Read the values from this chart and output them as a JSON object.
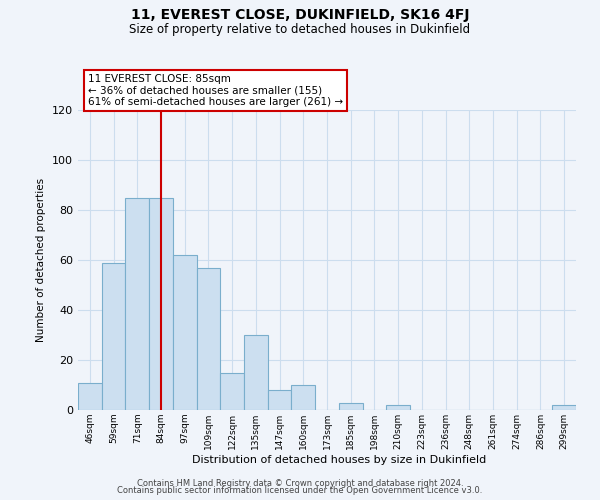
{
  "title": "11, EVEREST CLOSE, DUKINFIELD, SK16 4FJ",
  "subtitle": "Size of property relative to detached houses in Dukinfield",
  "xlabel": "Distribution of detached houses by size in Dukinfield",
  "ylabel": "Number of detached properties",
  "bar_labels": [
    "46sqm",
    "59sqm",
    "71sqm",
    "84sqm",
    "97sqm",
    "109sqm",
    "122sqm",
    "135sqm",
    "147sqm",
    "160sqm",
    "173sqm",
    "185sqm",
    "198sqm",
    "210sqm",
    "223sqm",
    "236sqm",
    "248sqm",
    "261sqm",
    "274sqm",
    "286sqm",
    "299sqm"
  ],
  "bar_values": [
    11,
    59,
    85,
    85,
    62,
    57,
    15,
    30,
    8,
    10,
    0,
    3,
    0,
    2,
    0,
    0,
    0,
    0,
    0,
    0,
    2
  ],
  "bar_color": "#ccdff0",
  "bar_edge_color": "#7aaecc",
  "vline_x_idx": 3,
  "vline_color": "#cc0000",
  "annotation_line1": "11 EVEREST CLOSE: 85sqm",
  "annotation_line2": "← 36% of detached houses are smaller (155)",
  "annotation_line3": "61% of semi-detached houses are larger (261) →",
  "annotation_box_color": "white",
  "annotation_box_edge_color": "#cc0000",
  "ylim": [
    0,
    120
  ],
  "yticks": [
    0,
    20,
    40,
    60,
    80,
    100,
    120
  ],
  "footer_line1": "Contains HM Land Registry data © Crown copyright and database right 2024.",
  "footer_line2": "Contains public sector information licensed under the Open Government Licence v3.0.",
  "grid_color": "#ccddee",
  "background_color": "#f0f4fa",
  "plot_bg_color": "#f0f4fa"
}
